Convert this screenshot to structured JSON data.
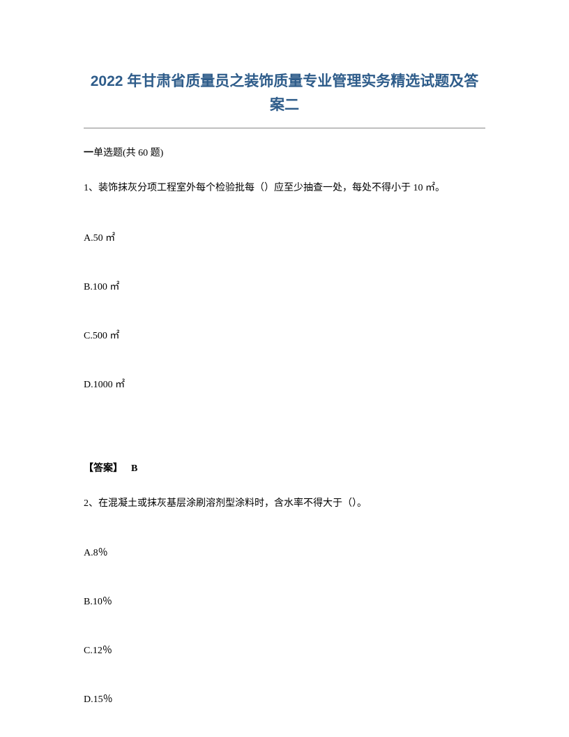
{
  "title": "2022 年甘肃省质量员之装饰质量专业管理实务精选试题及答案二",
  "section": {
    "prefix": "一",
    "label": "单选题",
    "count": "(共 60 题)"
  },
  "q1": {
    "text": "1、装饰抹灰分项工程室外每个检验批每（）应至少抽查一处，每处不得小于 10 ㎡。",
    "optA": "A.50 ㎡",
    "optB": "B.100 ㎡",
    "optC": "C.500 ㎡",
    "optD": "D.1000 ㎡",
    "answerLabel": "【答案】",
    "answerValue": "B"
  },
  "q2": {
    "text": "2、在混凝土或抹灰基层涂刷溶剂型涂料时，含水率不得大于（）。",
    "optA": "A.8％",
    "optB": "B.10％",
    "optC": "C.12％",
    "optD": "D.15％"
  },
  "styles": {
    "titleColor": "#2e5c8a",
    "textColor": "#000000",
    "borderColor": "#888888",
    "backgroundColor": "#ffffff",
    "titleFontSize": 21,
    "bodyFontSize": 14
  }
}
